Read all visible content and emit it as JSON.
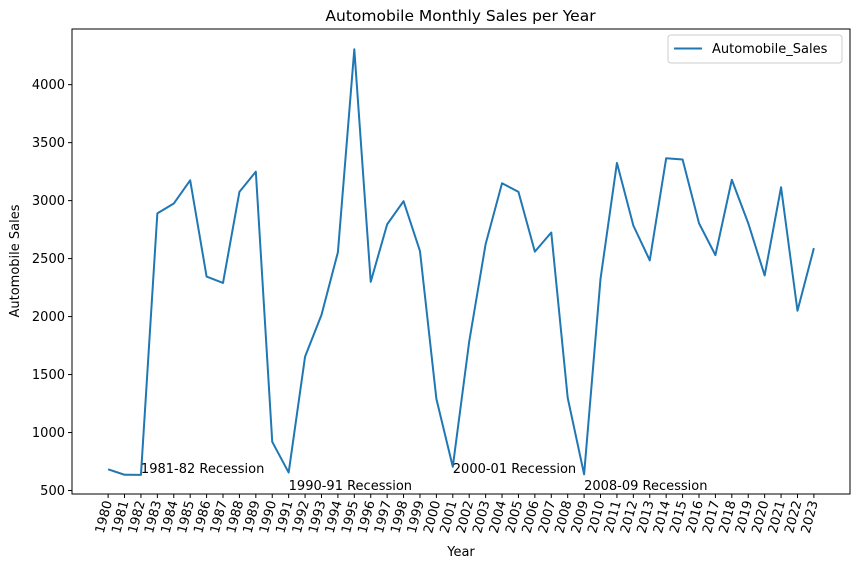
{
  "chart_data": {
    "type": "line",
    "title": "Automobile Monthly Sales per Year",
    "xlabel": "Year",
    "ylabel": "Automobile Sales",
    "xlim": [
      1977.8,
      2025.2
    ],
    "ylim": [
      470,
      4480
    ],
    "yticks": [
      500,
      1000,
      1500,
      2000,
      2500,
      3000,
      3500,
      4000
    ],
    "grid": false,
    "legend_position": "top-right",
    "series_color": "#1f77b4",
    "series": [
      {
        "name": "Automobile_Sales",
        "x": [
          1980,
          1981,
          1982,
          1983,
          1984,
          1985,
          1986,
          1987,
          1988,
          1989,
          1990,
          1991,
          1992,
          1993,
          1994,
          1995,
          1996,
          1997,
          1998,
          1999,
          2000,
          2001,
          2002,
          2003,
          2004,
          2005,
          2006,
          2007,
          2008,
          2009,
          2010,
          2011,
          2012,
          2013,
          2014,
          2015,
          2016,
          2017,
          2018,
          2019,
          2020,
          2021,
          2022,
          2023
        ],
        "y": [
          683,
          636,
          635,
          2890,
          2975,
          3175,
          2345,
          2290,
          3075,
          3250,
          920,
          655,
          1655,
          2015,
          2555,
          4305,
          2300,
          2795,
          2995,
          2565,
          1290,
          705,
          1785,
          2625,
          3150,
          3075,
          2560,
          2725,
          1300,
          640,
          2325,
          3325,
          2785,
          2485,
          3365,
          3355,
          2805,
          2530,
          3180,
          2805,
          2355,
          3115,
          2050,
          2590
        ]
      }
    ],
    "annotations": [
      {
        "text": "1981-82 Recession",
        "x": 1982,
        "y": 650
      },
      {
        "text": "1990-91 Recession",
        "x": 1991,
        "y": 505
      },
      {
        "text": "2000-01 Recession",
        "x": 2001,
        "y": 650
      },
      {
        "text": "2008-09 Recession",
        "x": 2009,
        "y": 505
      }
    ]
  }
}
